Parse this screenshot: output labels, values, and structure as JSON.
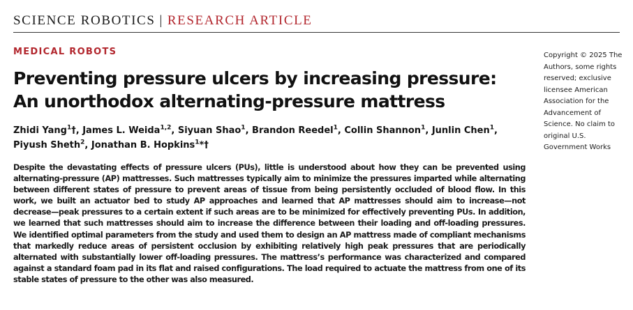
{
  "header": {
    "journal": "SCIENCE ROBOTICS",
    "separator": "|",
    "article_type": "RESEARCH ARTICLE"
  },
  "section": "MEDICAL ROBOTS",
  "title": "Preventing pressure ulcers by increasing pressure: An unorthodox alternating-pressure mattress",
  "authors": [
    {
      "name": "Zhidi Yang",
      "affil": "1",
      "mark": "†",
      "sep": ", "
    },
    {
      "name": "James L. Weida",
      "affil": "1,2",
      "mark": "",
      "sep": ", "
    },
    {
      "name": "Siyuan Shao",
      "affil": "1",
      "mark": "",
      "sep": ", "
    },
    {
      "name": "Brandon Reedel",
      "affil": "1",
      "mark": "",
      "sep": ", "
    },
    {
      "name": "Collin Shannon",
      "affil": "1",
      "mark": "",
      "sep": ", "
    },
    {
      "name": "Junlin Chen",
      "affil": "1",
      "mark": "",
      "sep": ", "
    },
    {
      "name": "Piyush Sheth",
      "affil": "2",
      "mark": "",
      "sep": ", "
    },
    {
      "name": "Jonathan B. Hopkins",
      "affil": "1",
      "mark": "*†",
      "sep": ""
    }
  ],
  "copyright": "Copyright © 2025 The Authors, some rights reserved; exclusive licensee American Association for the Advancement of Science. No claim to original U.S. Government Works",
  "abstract": "Despite the devastating effects of pressure ulcers (PUs), little is understood about how they can be prevented using alternating-pressure (AP) mattresses. Such mattresses typically aim to minimize the pressures imparted while alter­nating between different states of pressure to prevent areas of tissue from being persistently occluded of blood flow. In this work, we built an actuator bed to study AP approaches and learned that AP mattresses should aim to increase—not decrease—peak pressures to a certain extent if such areas are to be minimized for effectively prevent­ing PUs. In addition, we learned that such mattresses should aim to increase the difference between their loading and off-loading pressures. We identified optimal parameters from the study and used them to design an AP mattress made of compliant mechanisms that markedly reduce areas of persistent occlusion by exhibiting relatively high peak pressures that are periodically alternated with substantially lower off-loading pressures. The mattress’s perfor­mance was characterized and compared against a standard foam pad in its flat and raised configurations. The load required to actuate the mattress from one of its stable states of pressure to the other was also measured."
}
